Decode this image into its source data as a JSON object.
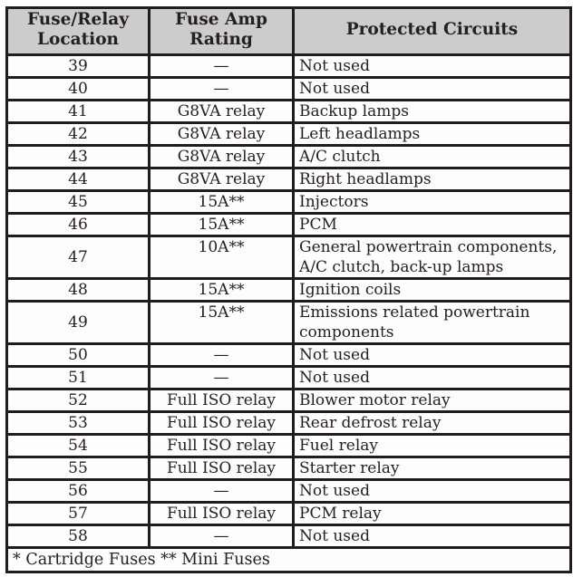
{
  "colors": {
    "header_bg": "#cccccc",
    "border": "#211d1e",
    "text": "#242021",
    "page_bg": "#fdfdfd"
  },
  "table": {
    "headers": [
      "Fuse/Relay\nLocation",
      "Fuse Amp\nRating",
      "Protected Circuits"
    ],
    "rows": [
      {
        "location": "39",
        "rating": "—",
        "circuits": "Not used"
      },
      {
        "location": "40",
        "rating": "—",
        "circuits": "Not used"
      },
      {
        "location": "41",
        "rating": "G8VA relay",
        "circuits": "Backup lamps"
      },
      {
        "location": "42",
        "rating": "G8VA relay",
        "circuits": "Left headlamps"
      },
      {
        "location": "43",
        "rating": "G8VA relay",
        "circuits": "A/C clutch"
      },
      {
        "location": "44",
        "rating": "G8VA relay",
        "circuits": "Right headlamps"
      },
      {
        "location": "45",
        "rating": "15A**",
        "circuits": "Injectors"
      },
      {
        "location": "46",
        "rating": "15A**",
        "circuits": "PCM"
      },
      {
        "location": "47",
        "rating": "10A**",
        "circuits": "General powertrain components, A/C clutch, back-up lamps"
      },
      {
        "location": "48",
        "rating": "15A**",
        "circuits": "Ignition coils"
      },
      {
        "location": "49",
        "rating": "15A**",
        "circuits": "Emissions related powertrain components"
      },
      {
        "location": "50",
        "rating": "—",
        "circuits": "Not used"
      },
      {
        "location": "51",
        "rating": "—",
        "circuits": "Not used"
      },
      {
        "location": "52",
        "rating": "Full ISO relay",
        "circuits": "Blower motor relay"
      },
      {
        "location": "53",
        "rating": "Full ISO relay",
        "circuits": "Rear defrost relay"
      },
      {
        "location": "54",
        "rating": "Full ISO relay",
        "circuits": "Fuel relay"
      },
      {
        "location": "55",
        "rating": "Full ISO relay",
        "circuits": "Starter relay"
      },
      {
        "location": "56",
        "rating": "—",
        "circuits": "Not used"
      },
      {
        "location": "57",
        "rating": "Full ISO relay",
        "circuits": "PCM relay"
      },
      {
        "location": "58",
        "rating": "—",
        "circuits": "Not used"
      }
    ],
    "footnote": "* Cartridge Fuses ** Mini Fuses"
  }
}
